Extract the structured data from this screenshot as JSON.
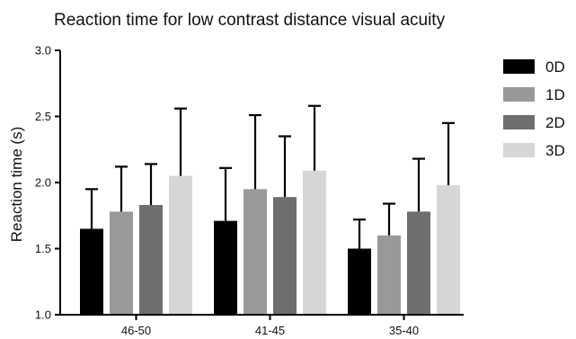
{
  "chart_data": {
    "type": "bar",
    "title": "Reaction time for low contrast distance visual acuity",
    "xlabel": "",
    "ylabel": "Reaction time (s)",
    "ylim": [
      1.0,
      3.0
    ],
    "yticks": [
      "1.0",
      "1.5",
      "2.0",
      "2.5",
      "3.0"
    ],
    "ytick_values": [
      1.0,
      1.5,
      2.0,
      2.5,
      3.0
    ],
    "categories": [
      "46-50",
      "41-45",
      "35-40"
    ],
    "grid": false,
    "legend_position": "top-right",
    "series": [
      {
        "name": "0D",
        "color": "#000000",
        "values": [
          1.65,
          1.71,
          1.5
        ],
        "error_upper": [
          1.95,
          2.11,
          1.72
        ]
      },
      {
        "name": "1D",
        "color": "#999999",
        "values": [
          1.78,
          1.95,
          1.6
        ],
        "error_upper": [
          2.12,
          2.51,
          1.84
        ]
      },
      {
        "name": "2D",
        "color": "#6e6e6e",
        "values": [
          1.83,
          1.89,
          1.78
        ],
        "error_upper": [
          2.14,
          2.35,
          2.18
        ]
      },
      {
        "name": "3D",
        "color": "#d6d6d6",
        "values": [
          2.05,
          2.09,
          1.98
        ],
        "error_upper": [
          2.56,
          2.58,
          2.45
        ]
      }
    ]
  }
}
